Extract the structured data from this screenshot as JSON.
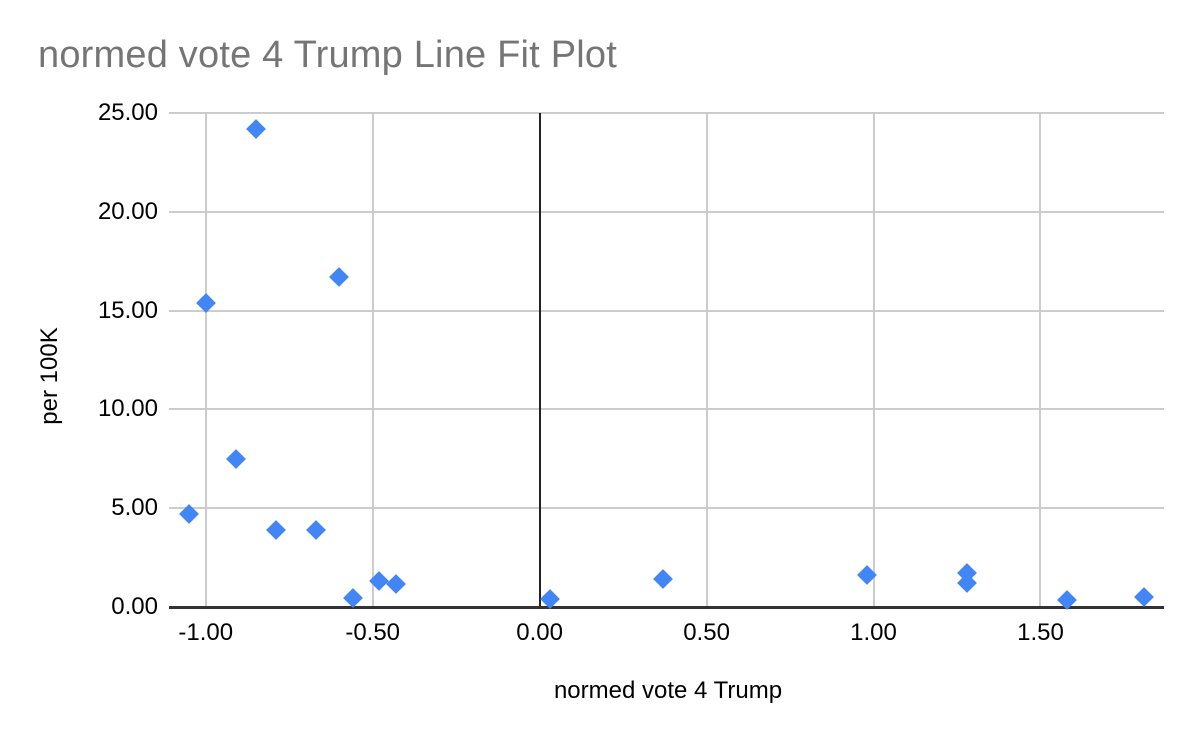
{
  "chart_data": {
    "type": "scatter",
    "title": "normed vote 4 Trump Line Fit Plot",
    "xlabel": "normed vote 4 Trump",
    "ylabel": "per 100K",
    "x_ticks": [
      -1.0,
      -0.5,
      0.0,
      0.5,
      1.0,
      1.5
    ],
    "y_ticks": [
      0,
      5,
      10,
      15,
      20,
      25
    ],
    "xlim": [
      -1.11,
      1.87
    ],
    "ylim": [
      0,
      25
    ],
    "grid": true,
    "legend": "none",
    "marker_shape": "diamond",
    "tick_label_format": "two_decimals",
    "series": [
      {
        "name": "per 100K",
        "color": "#4285f4",
        "points": [
          {
            "x": -1.05,
            "y": 4.7
          },
          {
            "x": -1.0,
            "y": 15.4
          },
          {
            "x": -0.91,
            "y": 7.5
          },
          {
            "x": -0.85,
            "y": 24.2
          },
          {
            "x": -0.79,
            "y": 3.9
          },
          {
            "x": -0.67,
            "y": 3.9
          },
          {
            "x": -0.6,
            "y": 16.7
          },
          {
            "x": -0.56,
            "y": 0.45
          },
          {
            "x": -0.48,
            "y": 1.3
          },
          {
            "x": -0.43,
            "y": 1.15
          },
          {
            "x": 0.03,
            "y": 0.4
          },
          {
            "x": 0.37,
            "y": 1.4
          },
          {
            "x": 0.98,
            "y": 1.6
          },
          {
            "x": 1.28,
            "y": 1.7
          },
          {
            "x": 1.28,
            "y": 1.2
          },
          {
            "x": 1.58,
            "y": 0.35
          },
          {
            "x": 1.81,
            "y": 0.5
          }
        ]
      }
    ]
  },
  "colors": {
    "point": "#4285f4",
    "gridline": "#cccccc",
    "axis_line": "#333333",
    "zero_line": "#222222",
    "title_text": "#757575",
    "label_text": "#000000",
    "background": "#ffffff"
  }
}
